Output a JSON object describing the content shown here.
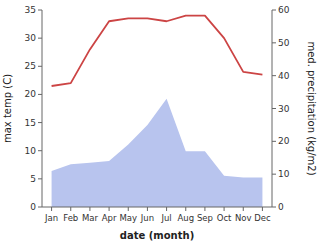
{
  "chart_data": {
    "type": "line",
    "xlabel": "date (month)",
    "ylabel": "max temp (C)",
    "y2label": "med. precipitation (kg/m2)",
    "categories": [
      "Jan",
      "Feb",
      "Mar",
      "Apr",
      "May",
      "Jun",
      "Jul",
      "Aug",
      "Sep",
      "Oct",
      "Nov",
      "Dec"
    ],
    "series": [
      {
        "type": "area",
        "color": "#b8c4ee",
        "axis": "y2",
        "values": [
          11.0,
          13.0,
          13.5,
          14.0,
          19.0,
          25.0,
          33.0,
          17.0,
          17.0,
          9.5,
          9.0,
          9.0
        ]
      },
      {
        "type": "line",
        "color": "#cc4444",
        "values": [
          21.5,
          22.0,
          28.0,
          33.0,
          33.5,
          33.5,
          33.0,
          34.0,
          34.0,
          30.0,
          24.0,
          23.5
        ]
      }
    ],
    "ylim": [
      0,
      35
    ],
    "yticks": [
      0,
      5,
      10,
      15,
      20,
      25,
      30,
      35
    ],
    "y2lim": [
      0,
      60
    ],
    "y2ticks": [
      0,
      10,
      20,
      30,
      40,
      50,
      60
    ],
    "grid": false
  }
}
